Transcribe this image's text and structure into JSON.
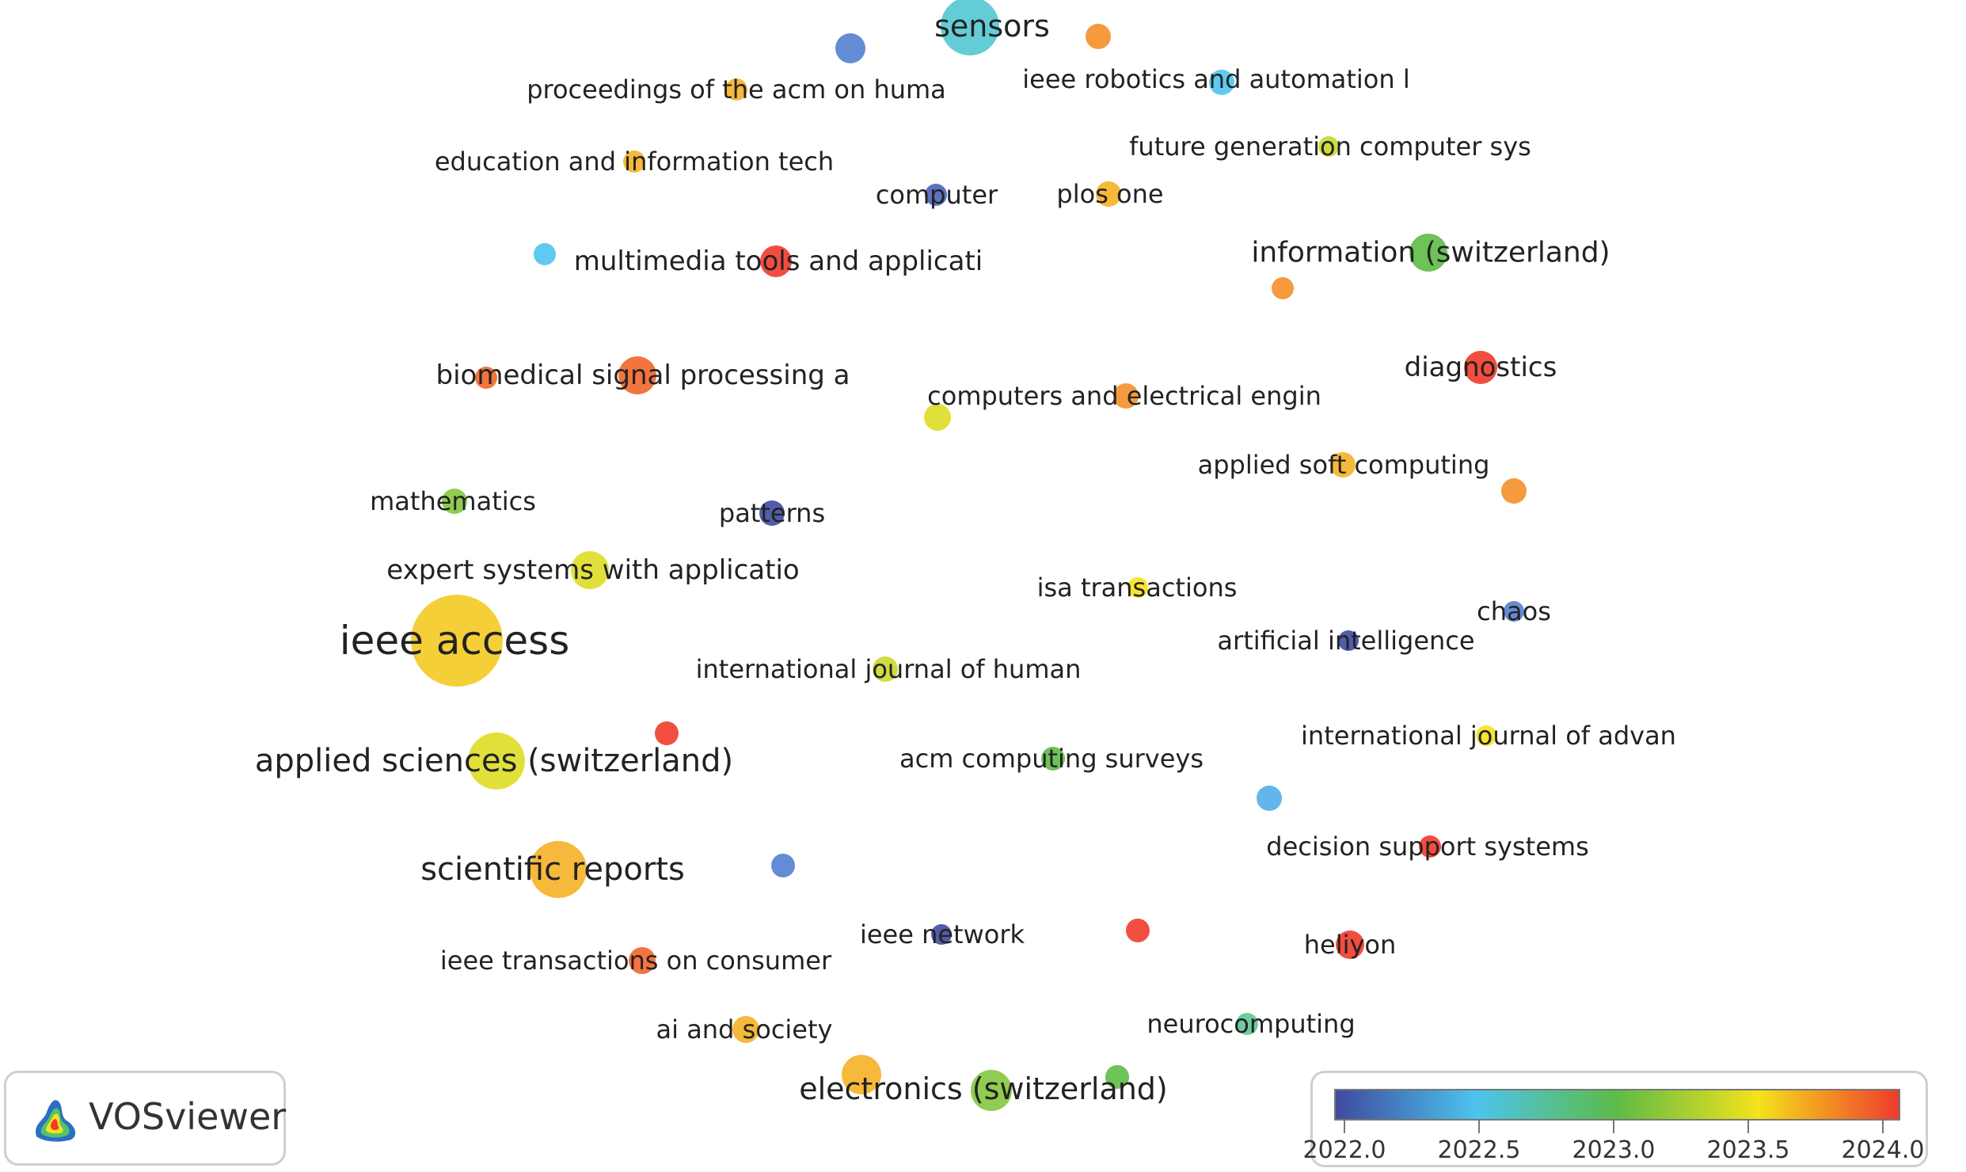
{
  "nodes": [
    {
      "id": "sensors",
      "label": "sensors",
      "year": 2022.6,
      "weight": 3
    },
    {
      "id": "proceedings-acm",
      "label": "proceedings of the acm on huma",
      "year": 2023.7,
      "weight": 1
    },
    {
      "id": "ieee-robotics",
      "label": "ieee robotics and automation l",
      "year": 2022.5,
      "weight": 1
    },
    {
      "id": "education-info",
      "label": "education and information tech",
      "year": 2023.7,
      "weight": 1
    },
    {
      "id": "future-gen",
      "label": "future generation computer sys",
      "year": 2023.3,
      "weight": 1
    },
    {
      "id": "computer",
      "label": "computer",
      "year": 2022.1,
      "weight": 1
    },
    {
      "id": "plos-one",
      "label": "plos one",
      "year": 2023.7,
      "weight": 1
    },
    {
      "id": "multimedia-tools",
      "label": "multimedia tools and applicati",
      "year": 2024.0,
      "weight": 2
    },
    {
      "id": "information-switz",
      "label": "information (switzerland)",
      "year": 2023.0,
      "weight": 2
    },
    {
      "id": "biomedical-signal",
      "label": "biomedical signal processing a",
      "year": 2023.9,
      "weight": 2
    },
    {
      "id": "diagnostics",
      "label": "diagnostics",
      "year": 2024.0,
      "weight": 2
    },
    {
      "id": "computers-electrical",
      "label": "computers and electrical engin",
      "year": 2023.8,
      "weight": 1
    },
    {
      "id": "applied-soft",
      "label": "applied soft computing",
      "year": 2023.7,
      "weight": 1
    },
    {
      "id": "mathematics",
      "label": "mathematics",
      "year": 2023.1,
      "weight": 1
    },
    {
      "id": "patterns",
      "label": "patterns",
      "year": 2022.0,
      "weight": 1
    },
    {
      "id": "expert-systems",
      "label": "expert systems with applicatio",
      "year": 2023.4,
      "weight": 2
    },
    {
      "id": "isa-transactions",
      "label": "isa transactions",
      "year": 2023.5,
      "weight": 1
    },
    {
      "id": "chaos",
      "label": "chaos",
      "year": 2022.2,
      "weight": 1
    },
    {
      "id": "ieee-access",
      "label": "ieee access",
      "year": 2023.6,
      "weight": 6
    },
    {
      "id": "artificial-intelligence",
      "label": "artificial intelligence",
      "year": 2022.0,
      "weight": 1
    },
    {
      "id": "intl-journal-human",
      "label": "international journal of human",
      "year": 2023.3,
      "weight": 1
    },
    {
      "id": "intl-journal-advan",
      "label": "international journal of advan",
      "year": 2023.5,
      "weight": 1
    },
    {
      "id": "applied-sciences",
      "label": "applied sciences (switzerland)",
      "year": 2023.4,
      "weight": 4
    },
    {
      "id": "acm-computing",
      "label": "acm computing surveys",
      "year": 2023.0,
      "weight": 1
    },
    {
      "id": "decision-support",
      "label": "decision support systems",
      "year": 2024.0,
      "weight": 1
    },
    {
      "id": "scientific-reports",
      "label": "scientific reports",
      "year": 2023.7,
      "weight": 4
    },
    {
      "id": "ieee-network",
      "label": "ieee network",
      "year": 2022.0,
      "weight": 1
    },
    {
      "id": "heliyon",
      "label": "heliyon",
      "year": 2024.0,
      "weight": 1
    },
    {
      "id": "ieee-transactions-consumer",
      "label": "ieee transactions on consumer",
      "year": 2023.9,
      "weight": 1
    },
    {
      "id": "ai-society",
      "label": "ai and society",
      "year": 2023.7,
      "weight": 1
    },
    {
      "id": "neurocomputing",
      "label": "neurocomputing",
      "year": 2022.8,
      "weight": 1
    },
    {
      "id": "electronics-switz",
      "label": "electronics (switzerland)",
      "year": 2023.1,
      "weight": 3
    },
    {
      "id": "u1",
      "label": "",
      "year": 2022.2,
      "weight": 1
    },
    {
      "id": "u2",
      "label": "",
      "year": 2023.8,
      "weight": 1
    },
    {
      "id": "u3",
      "label": "",
      "year": 2022.5,
      "weight": 1
    },
    {
      "id": "u4",
      "label": "",
      "year": 2023.8,
      "weight": 1
    },
    {
      "id": "u5",
      "label": "",
      "year": 2023.9,
      "weight": 1
    },
    {
      "id": "u6",
      "label": "",
      "year": 2023.4,
      "weight": 1
    },
    {
      "id": "u7",
      "label": "",
      "year": 2023.8,
      "weight": 1
    },
    {
      "id": "u8",
      "label": "",
      "year": 2022.4,
      "weight": 1
    },
    {
      "id": "u9",
      "label": "",
      "year": 2022.2,
      "weight": 1
    },
    {
      "id": "u10",
      "label": "",
      "year": 2024.0,
      "weight": 1
    },
    {
      "id": "u11",
      "label": "",
      "year": 2023.7,
      "weight": 2
    },
    {
      "id": "u12",
      "label": "",
      "year": 2023.0,
      "weight": 1
    },
    {
      "id": "u13",
      "label": "",
      "year": 2024.0,
      "weight": 1
    }
  ],
  "brand": {
    "name": "VOSviewer"
  },
  "color_scale": {
    "ticks": [
      "2022.0",
      "2022.5",
      "2023.0",
      "2023.5",
      "2024.0"
    ],
    "colors": [
      "#3f4a9e",
      "#4cc4ee",
      "#5dbb46",
      "#f4e21c",
      "#ef3b2b"
    ]
  }
}
